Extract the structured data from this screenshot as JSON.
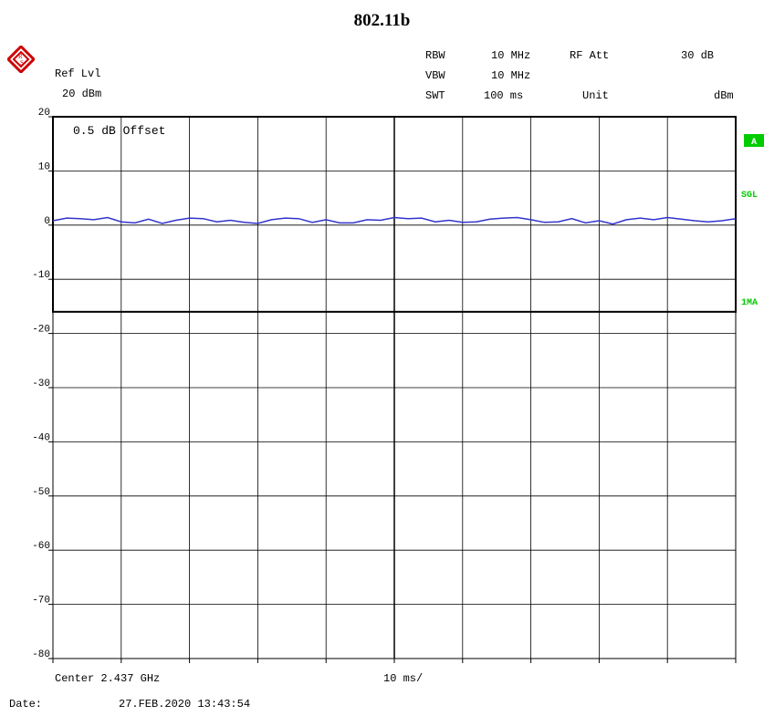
{
  "title": "802.11b",
  "header": {
    "ref_lvl_label": "Ref Lvl",
    "ref_lvl_value": "20 dBm",
    "rbw_label": "RBW",
    "rbw_value": "10 MHz",
    "vbw_label": "VBW",
    "vbw_value": "10 MHz",
    "swt_label": "SWT",
    "swt_value": "100 ms",
    "rf_att_label": "RF Att",
    "rf_att_value": "30 dB",
    "unit_label": "Unit",
    "unit_value": "dBm"
  },
  "side_labels": {
    "trace_a": "A",
    "sgl": "SGL",
    "one_ma": "1MA"
  },
  "offset_note": "0.5 dB Offset",
  "footer": {
    "center": "Center 2.437 GHz",
    "span": "10 ms/",
    "date_label": "Date:",
    "date_value": "27.FEB.2020  13:43:54"
  },
  "colors": {
    "trace": "#3333cc",
    "grid": "#000000",
    "label_bg": "#00cc00",
    "label_text": "#00cc00"
  },
  "chart_data": {
    "type": "line",
    "x_unit": "ms",
    "xlim": [
      0,
      100
    ],
    "ylim": [
      -80,
      20
    ],
    "yticks": [
      20,
      10,
      0,
      -10,
      -20,
      -30,
      -40,
      -50,
      -60,
      -70,
      -80
    ],
    "grid": true,
    "series": [
      {
        "x": [
          0,
          2,
          4,
          6,
          8,
          10,
          12,
          14,
          16,
          18,
          20,
          22,
          24,
          26,
          28,
          30,
          32,
          34,
          36,
          38,
          40,
          42,
          44,
          46,
          48,
          50,
          52,
          54,
          56,
          58,
          60,
          62,
          64,
          66,
          68,
          70,
          72,
          74,
          76,
          78,
          80,
          82,
          84,
          86,
          88,
          90,
          92,
          94,
          96,
          98,
          100
        ],
        "y": [
          0.8,
          1.3,
          1.2,
          1.0,
          1.4,
          0.6,
          0.4,
          1.1,
          0.3,
          0.9,
          1.3,
          1.2,
          0.6,
          0.9,
          0.5,
          0.3,
          1.0,
          1.3,
          1.2,
          0.5,
          1.0,
          0.4,
          0.4,
          1.0,
          0.9,
          1.4,
          1.2,
          1.3,
          0.6,
          0.9,
          0.5,
          0.6,
          1.1,
          1.3,
          1.4,
          1.0,
          0.5,
          0.6,
          1.2,
          0.4,
          0.8,
          0.2,
          1.0,
          1.3,
          1.0,
          1.4,
          1.1,
          0.8,
          0.6,
          0.8,
          1.2
        ]
      }
    ]
  }
}
